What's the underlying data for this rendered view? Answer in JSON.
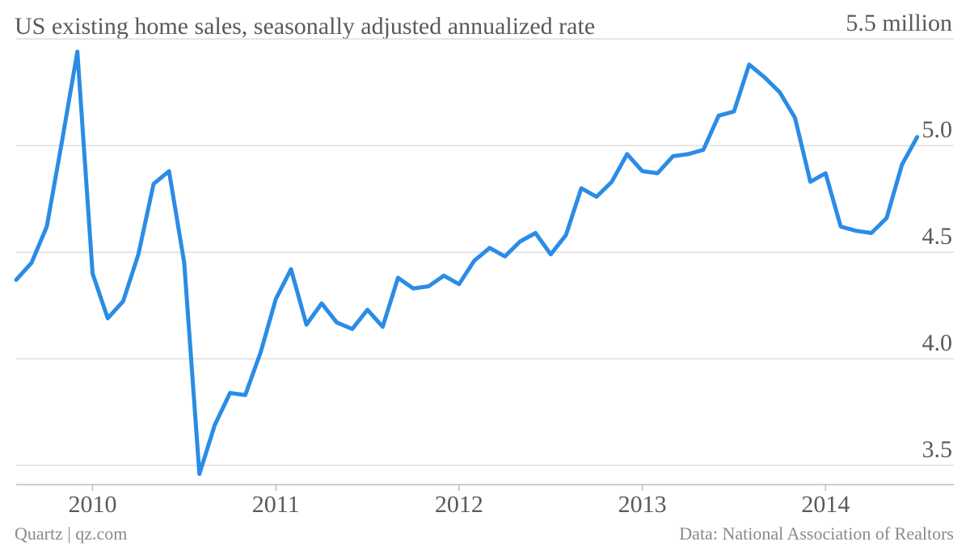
{
  "chart_data": {
    "type": "line",
    "title": "US existing home sales, seasonally adjusted annualized rate",
    "source_left": "Quartz | qz.com",
    "source_right": "Data: National Association of Realtors",
    "x": [
      2009.583,
      2009.667,
      2009.75,
      2009.833,
      2009.917,
      2010,
      2010.083,
      2010.167,
      2010.25,
      2010.333,
      2010.417,
      2010.5,
      2010.583,
      2010.667,
      2010.75,
      2010.833,
      2010.917,
      2011,
      2011.083,
      2011.167,
      2011.25,
      2011.333,
      2011.417,
      2011.5,
      2011.583,
      2011.667,
      2011.75,
      2011.833,
      2011.917,
      2012,
      2012.083,
      2012.167,
      2012.25,
      2012.333,
      2012.417,
      2012.5,
      2012.583,
      2012.667,
      2012.75,
      2012.833,
      2012.917,
      2013,
      2013.083,
      2013.167,
      2013.25,
      2013.333,
      2013.417,
      2013.5,
      2013.583,
      2013.667,
      2013.75,
      2013.833,
      2013.917,
      2014,
      2014.083,
      2014.167,
      2014.25,
      2014.333,
      2014.417,
      2014.5
    ],
    "series": [
      {
        "name": "Existing home sales",
        "color": "#2b8ce6",
        "values": [
          4.37,
          4.45,
          4.62,
          5.02,
          5.44,
          4.4,
          4.19,
          4.27,
          4.49,
          4.82,
          4.88,
          4.45,
          3.46,
          3.69,
          3.84,
          3.83,
          4.03,
          4.28,
          4.42,
          4.16,
          4.26,
          4.17,
          4.14,
          4.23,
          4.15,
          4.38,
          4.33,
          4.34,
          4.39,
          4.35,
          4.46,
          4.52,
          4.48,
          4.55,
          4.59,
          4.49,
          4.58,
          4.8,
          4.76,
          4.83,
          4.96,
          4.88,
          4.87,
          4.95,
          4.96,
          4.98,
          5.14,
          5.16,
          5.38,
          5.32,
          5.25,
          5.13,
          4.83,
          4.87,
          4.62,
          4.6,
          4.59,
          4.66,
          4.91,
          5.04
        ]
      }
    ],
    "xlim": [
      2009.583,
      2014.7
    ],
    "xticks": [
      2010,
      2011,
      2012,
      2013,
      2014
    ],
    "ylim": [
      3.41,
      5.55
    ],
    "yticks": [
      {
        "value": 3.5,
        "label": "3.5"
      },
      {
        "value": 4.0,
        "label": "4.0"
      },
      {
        "value": 4.5,
        "label": "4.5"
      },
      {
        "value": 5.0,
        "label": "5.0"
      },
      {
        "value": 5.5,
        "label": "5.5 million"
      }
    ],
    "grid": true
  }
}
